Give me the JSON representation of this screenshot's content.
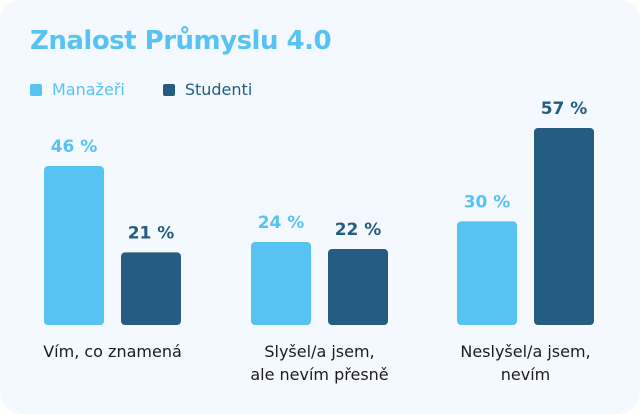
{
  "chart_data": {
    "type": "bar",
    "title": "Znalost Průmyslu 4.0",
    "categories": [
      [
        "Vím, co znamená"
      ],
      [
        "Slyšel/a jsem,",
        "ale nevím přesně"
      ],
      [
        "Neslyšel/a jsem,",
        "nevím"
      ]
    ],
    "series": [
      {
        "name": "Manažeři",
        "values": [
          46,
          24,
          30
        ],
        "labels": [
          "46 %",
          "24 %",
          "30 %"
        ],
        "color": "#56c3f2"
      },
      {
        "name": "Studenti",
        "values": [
          21,
          22,
          57
        ],
        "labels": [
          "21 %",
          "22 %",
          "57 %"
        ],
        "color": "#245d80"
      }
    ],
    "ylim": [
      0,
      57
    ],
    "grid": false,
    "legend_position": "top-left"
  },
  "colors": {
    "card_background": "#f3f9fe",
    "title": "#56c3f2",
    "value_label_dark": "#245d80",
    "category_text": "#1c1c1c"
  }
}
